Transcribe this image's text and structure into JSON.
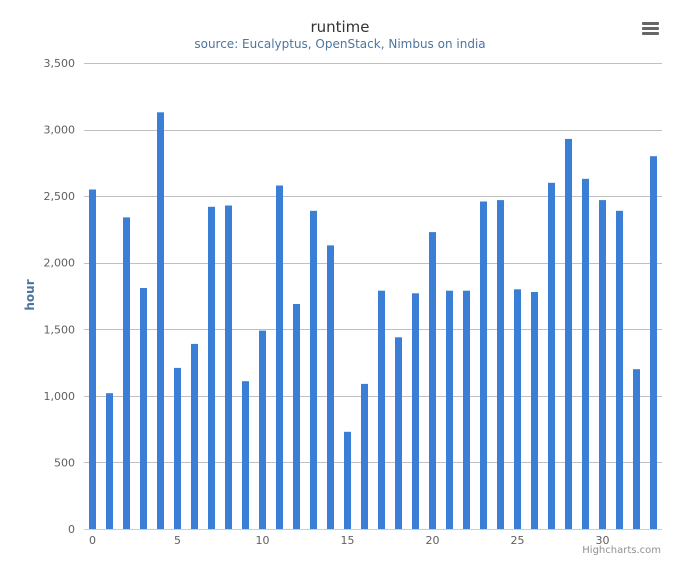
{
  "title": "runtime",
  "subtitle": "source: Eucalyptus, OpenStack, Nimbus on india",
  "credits": "Highcharts.com",
  "menu_icon": "hamburger-menu-icon",
  "colors": {
    "bar": "#3a7fd5",
    "grid": "#c0c0c0",
    "axis_text": "#606060",
    "title": "#333333",
    "subtitle": "#4d759e"
  },
  "chart_data": {
    "type": "bar",
    "title": "runtime",
    "subtitle": "source: Eucalyptus, OpenStack, Nimbus on india",
    "xlabel": "",
    "ylabel": "hour",
    "ylim": [
      0,
      3500
    ],
    "y_ticks": [
      "0",
      "500",
      "1,000",
      "1,500",
      "2,000",
      "2,500",
      "3,000",
      "3,500"
    ],
    "y_tick_values": [
      0,
      500,
      1000,
      1500,
      2000,
      2500,
      3000,
      3500
    ],
    "x_ticks": [
      "0",
      "5",
      "10",
      "15",
      "20",
      "25",
      "30"
    ],
    "x_tick_values": [
      0,
      5,
      10,
      15,
      20,
      25,
      30
    ],
    "categories": [
      0,
      1,
      2,
      3,
      4,
      5,
      6,
      7,
      8,
      9,
      10,
      11,
      12,
      13,
      14,
      15,
      16,
      17,
      18,
      19,
      20,
      21,
      22,
      23,
      24,
      25,
      26,
      27,
      28,
      29,
      30,
      31,
      32,
      33
    ],
    "values": [
      2550,
      1020,
      2340,
      1810,
      3130,
      1210,
      1390,
      2420,
      2430,
      1110,
      1490,
      2580,
      1690,
      2390,
      2130,
      730,
      1090,
      1790,
      1440,
      1770,
      2230,
      1790,
      1790,
      2460,
      2470,
      1800,
      1780,
      2600,
      2930,
      2630,
      2470,
      2390,
      1200,
      2800
    ],
    "grid": true,
    "legend": "none"
  }
}
